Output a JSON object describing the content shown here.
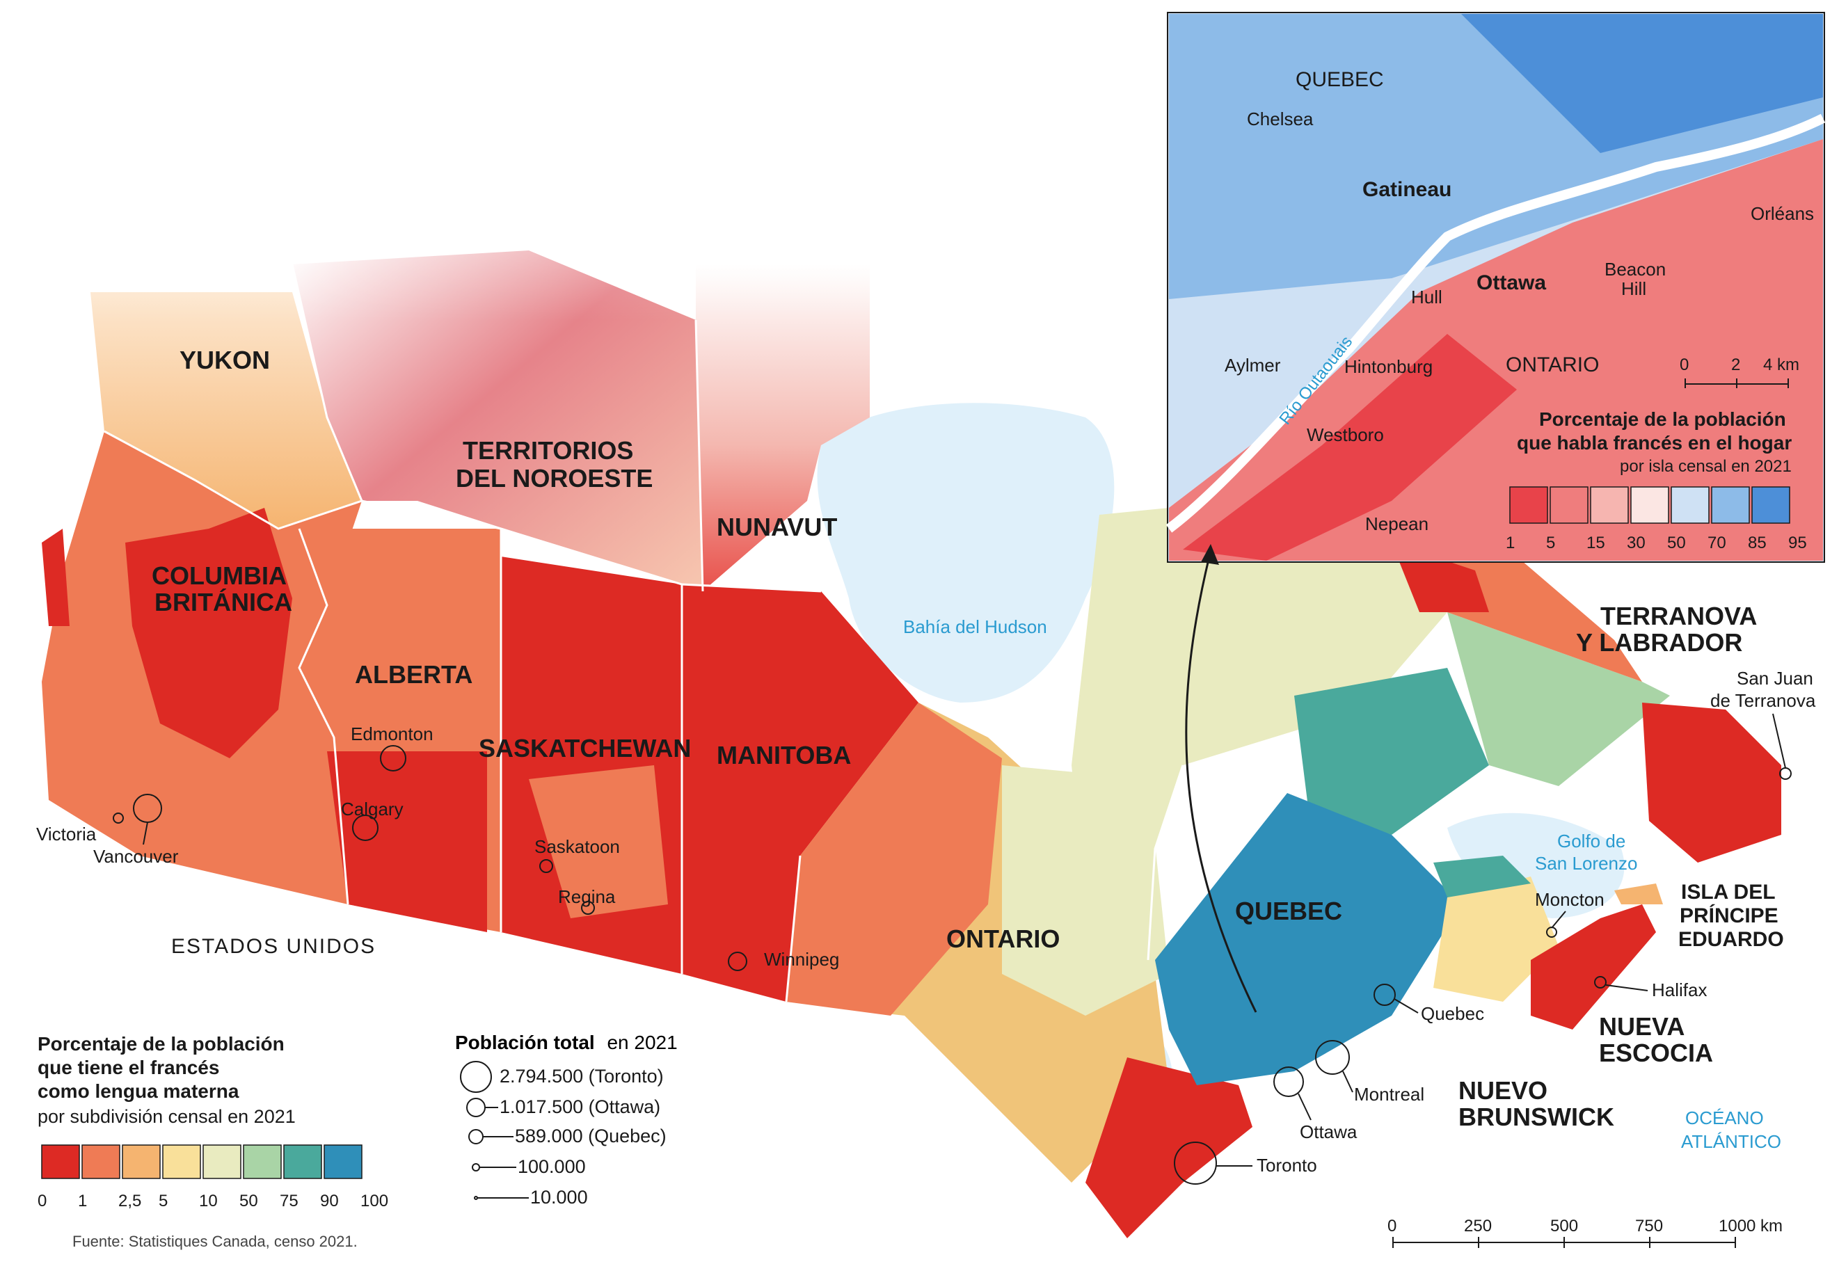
{
  "main_map": {
    "provinces": {
      "yukon": "YUKON",
      "nwt": [
        "TERRITORIOS",
        "DEL NOROESTE"
      ],
      "nunavut": "NUNAVUT",
      "bc": [
        "COLUMBIA",
        "BRITÁNICA"
      ],
      "alberta": "ALBERTA",
      "saskatchewan": "SASKATCHEWAN",
      "manitoba": "MANITOBA",
      "ontario": "ONTARIO",
      "quebec": "QUEBEC",
      "newfoundland": [
        "TERRANOVA",
        "Y LABRADOR"
      ],
      "pei": [
        "ISLA DEL",
        "PRÍNCIPE",
        "EDUARDO"
      ],
      "nova_scotia": [
        "NUEVA",
        "ESCOCIA"
      ],
      "new_brunswick": [
        "NUEVO",
        "BRUNSWICK"
      ]
    },
    "cities": {
      "victoria": "Victoria",
      "vancouver": "Vancouver",
      "edmonton": "Edmonton",
      "calgary": "Calgary",
      "saskatoon": "Saskatoon",
      "regina": "Regina",
      "winnipeg": "Winnipeg",
      "toronto": "Toronto",
      "ottawa": "Ottawa",
      "montreal": "Montreal",
      "quebec": "Quebec",
      "moncton": "Moncton",
      "halifax": "Halifax",
      "st_johns": [
        "San Juan",
        "de Terranova"
      ]
    },
    "water": {
      "hudson": "Bahía del Hudson",
      "golfo": [
        "Golfo de",
        "San Lorenzo"
      ],
      "oceano": [
        "OCÉANO",
        "ATLÁNTICO"
      ]
    },
    "country": "ESTADOS UNIDOS",
    "scale": {
      "ticks": [
        "0",
        "250",
        "500",
        "750",
        "1000 km"
      ]
    }
  },
  "legend_french": {
    "title": [
      "Porcentaje de la población",
      "que tiene el francés",
      "como lengua materna"
    ],
    "subtitle": "por subdivisión censal en 2021",
    "colors": [
      "#dd2a24",
      "#ef7b55",
      "#f5b470",
      "#f9e09a",
      "#e9ebc0",
      "#a9d4a6",
      "#4aa99c",
      "#2f8fb9"
    ],
    "ticks": [
      "0",
      "1",
      "2,5",
      "5",
      "10",
      "50",
      "75",
      "90",
      "100"
    ]
  },
  "legend_population": {
    "title_bold": "Población total",
    "title_rest": "en 2021",
    "items": [
      "2.794.500 (Toronto)",
      "1.017.500 (Ottawa)",
      "589.000 (Quebec)",
      "100.000",
      "10.000"
    ]
  },
  "inset": {
    "labels": {
      "quebec": "QUEBEC",
      "chelsea": "Chelsea",
      "gatineau": "Gatineau",
      "hull": "Hull",
      "aylmer": "Aylmer",
      "hintonburg": "Hintonburg",
      "ottawa": "Ottawa",
      "ontario": "ONTARIO",
      "westboro": "Westboro",
      "nepean": "Nepean",
      "orleans": "Orléans",
      "beacon": [
        "Beacon",
        "Hill"
      ],
      "rio": "Río Outaouais"
    },
    "scale": {
      "ticks": [
        "0",
        "2",
        "4 km"
      ]
    },
    "legend": {
      "title": [
        "Porcentaje de la población",
        "que habla francés en el hogar"
      ],
      "subtitle": "por isla censal en 2021",
      "colors": [
        "#e8434a",
        "#ef7d7d",
        "#f6b5b0",
        "#fbe6e3",
        "#cfe1f4",
        "#8dbbe8",
        "#4d8fd8"
      ],
      "ticks": [
        "1",
        "5",
        "15",
        "30",
        "50",
        "70",
        "85",
        "95"
      ]
    }
  },
  "source": "Fuente: Statistiques Canada, censo 2021."
}
